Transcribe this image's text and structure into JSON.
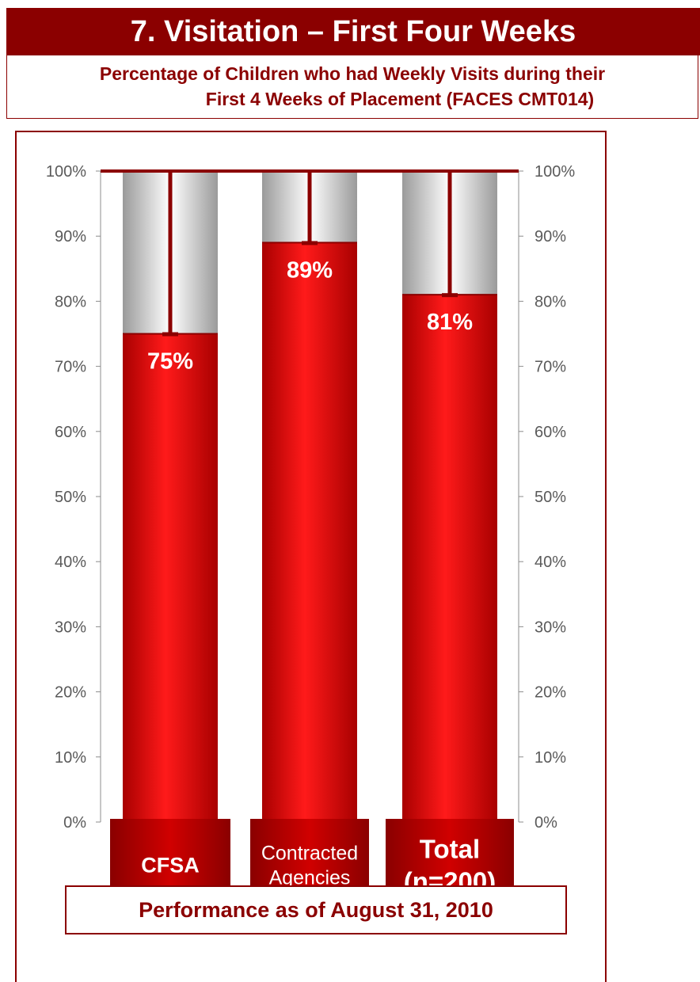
{
  "header": {
    "title": "7.  Visitation – First Four Weeks",
    "subtitle_line1": "Percentage of Children who had Weekly Visits during their",
    "subtitle_line2": "First 4 Weeks of Placement (FACES CMT014)"
  },
  "footer": {
    "text": "Performance as of August 31, 2010"
  },
  "colors": {
    "brand": "#8b0000",
    "bar": "#e00000",
    "remainder": "#c8c8c8",
    "axis_text": "#5a5a5a"
  },
  "chart_data": {
    "type": "bar",
    "title": "Percentage of Children who had Weekly Visits during their First 4 Weeks of Placement (FACES CMT014)",
    "categories": [
      "CFSA",
      "Contracted Agencies",
      "Total (n=200)"
    ],
    "category_lines": [
      [
        "CFSA"
      ],
      [
        "Contracted",
        "Agencies"
      ],
      [
        "Total",
        "(n=200)"
      ]
    ],
    "values": [
      75,
      89,
      81
    ],
    "value_labels": [
      "75%",
      "89%",
      "81%"
    ],
    "ylim": [
      0,
      100
    ],
    "yticks": [
      "0%",
      "10%",
      "20%",
      "30%",
      "40%",
      "50%",
      "60%",
      "70%",
      "80%",
      "90%",
      "100%"
    ],
    "y_axis_both_sides": true,
    "stacked_remainder_to": 100,
    "grid": false,
    "legend": "none"
  }
}
